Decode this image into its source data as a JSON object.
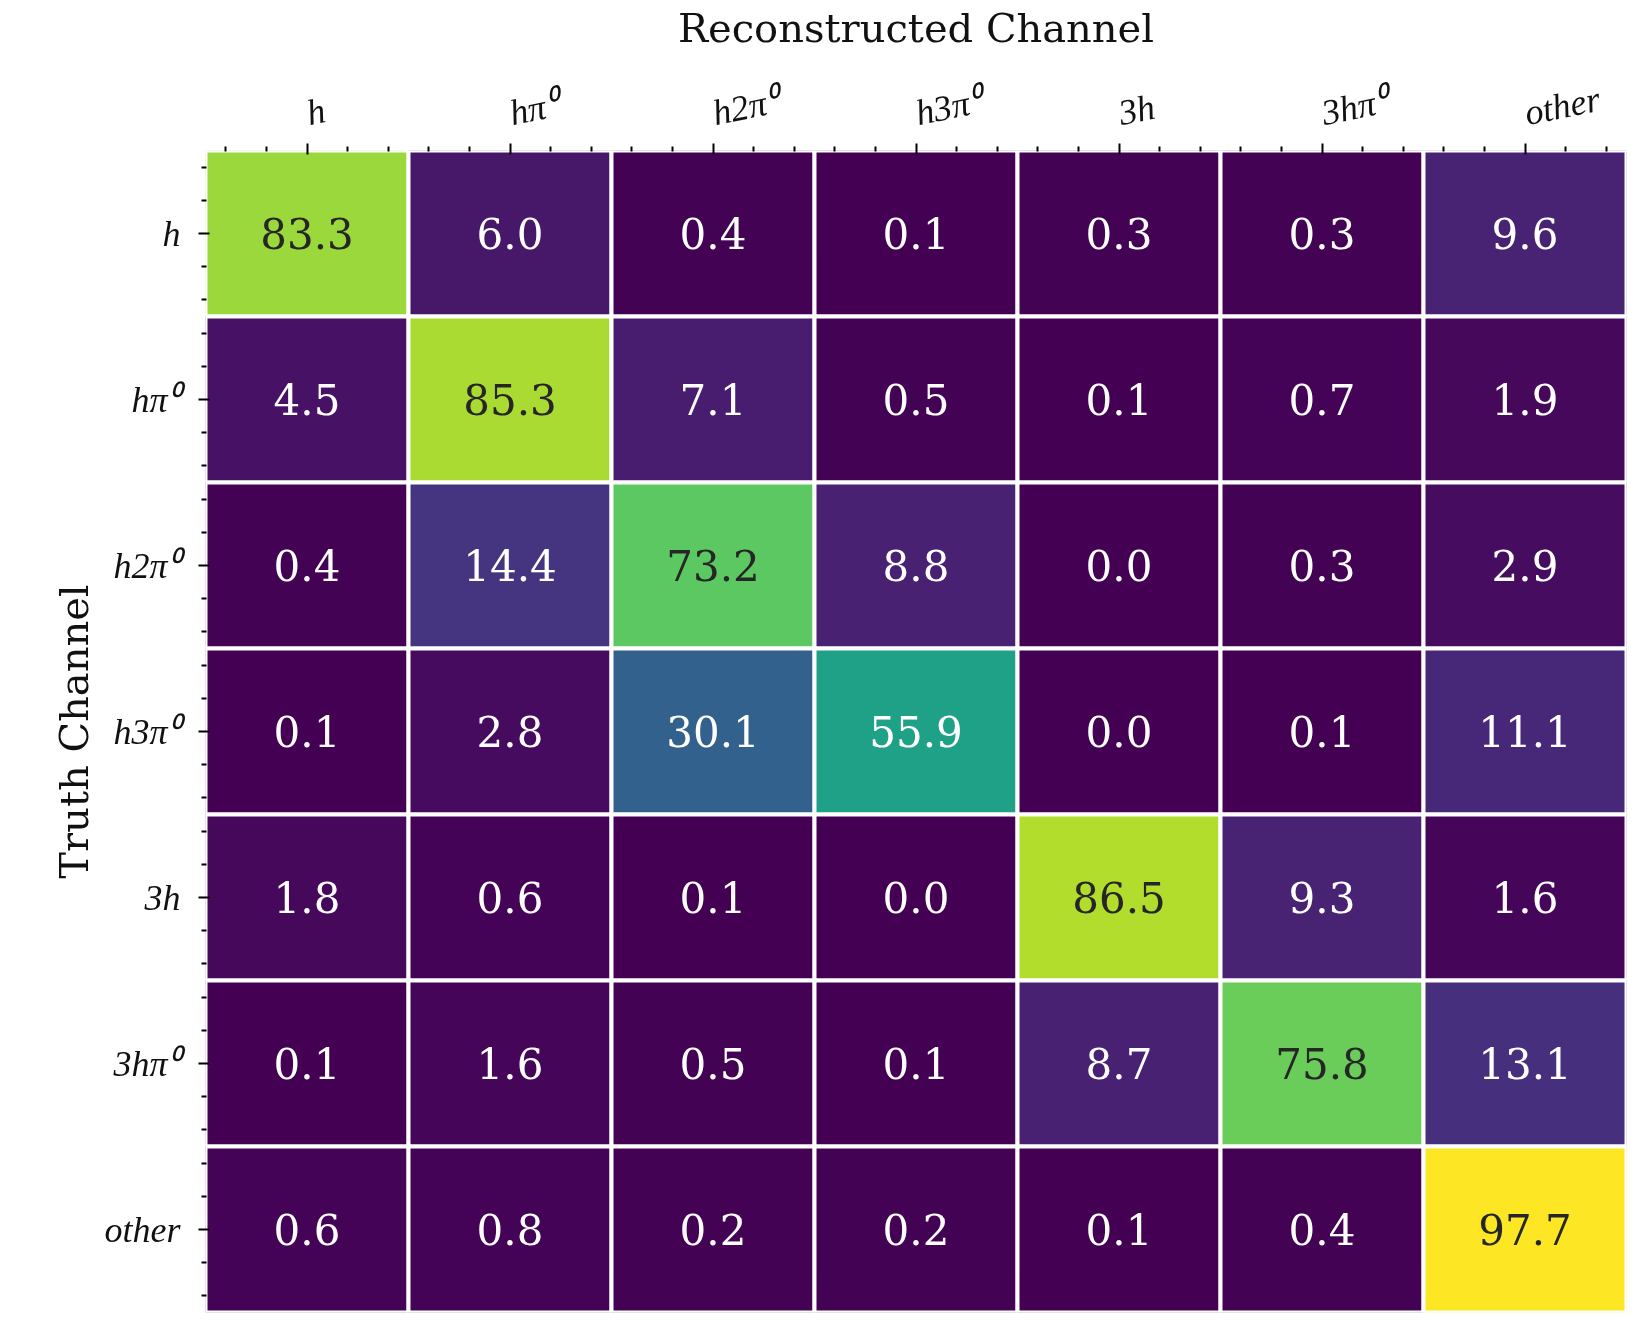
{
  "chart_data": {
    "type": "heatmap",
    "xlabel": "Reconstructed Channel",
    "ylabel": "Truth Channel",
    "categories": [
      "h",
      "hπ⁰",
      "h2π⁰",
      "h3π⁰",
      "3h",
      "3hπ⁰",
      "other"
    ],
    "y_categories": [
      "h",
      "hπ⁰",
      "h2π⁰",
      "h3π⁰",
      "3h",
      "3hπ⁰",
      "other"
    ],
    "cells": [
      [
        83.3,
        6.0,
        0.4,
        0.1,
        0.3,
        0.3,
        9.6
      ],
      [
        4.5,
        85.3,
        7.1,
        0.5,
        0.1,
        0.7,
        1.9
      ],
      [
        0.4,
        14.4,
        73.2,
        8.8,
        0.0,
        0.3,
        2.9
      ],
      [
        0.1,
        2.8,
        30.1,
        55.9,
        0.0,
        0.1,
        11.1
      ],
      [
        1.8,
        0.6,
        0.1,
        0.0,
        86.5,
        9.3,
        1.6
      ],
      [
        0.1,
        1.6,
        0.5,
        0.1,
        8.7,
        75.8,
        13.1
      ],
      [
        0.6,
        0.8,
        0.2,
        0.2,
        0.1,
        0.4,
        97.7
      ]
    ],
    "cell_labels": [
      [
        "83.3",
        "6.0",
        "0.4",
        "0.1",
        "0.3",
        "0.3",
        "9.6"
      ],
      [
        "4.5",
        "85.3",
        "7.1",
        "0.5",
        "0.1",
        "0.7",
        "1.9"
      ],
      [
        "0.4",
        "14.4",
        "73.2",
        "8.8",
        "0.0",
        "0.3",
        "2.9"
      ],
      [
        "0.1",
        "2.8",
        "30.1",
        "55.9",
        "0.0",
        "0.1",
        "11.1"
      ],
      [
        "1.8",
        "0.6",
        "0.1",
        "0.0",
        "86.5",
        "9.3",
        "1.6"
      ],
      [
        "0.1",
        "1.6",
        "0.5",
        "0.1",
        "8.7",
        "75.8",
        "13.1"
      ],
      [
        "0.6",
        "0.8",
        "0.2",
        "0.2",
        "0.1",
        "0.4",
        "97.7"
      ]
    ]
  }
}
